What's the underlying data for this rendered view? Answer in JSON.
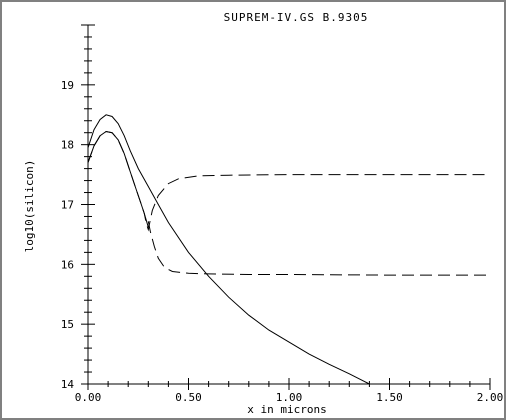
{
  "chart_data": {
    "type": "line",
    "title": "SUPREM-IV.GS B.9305",
    "xlabel": "x in microns",
    "ylabel": "log10(silicon)",
    "xlim": [
      0.0,
      2.0
    ],
    "ylim": [
      14,
      20
    ],
    "x_ticks": [
      "0.00",
      "0.50",
      "1.00",
      "1.50",
      "2.00"
    ],
    "y_ticks": [
      "14",
      "15",
      "16",
      "17",
      "18",
      "19"
    ],
    "grid": false,
    "series": [
      {
        "style": "solid",
        "x": [
          0.0,
          0.03,
          0.06,
          0.09,
          0.12,
          0.15,
          0.18,
          0.21,
          0.25,
          0.3,
          0.35,
          0.4,
          0.5,
          0.6,
          0.7,
          0.8,
          0.9,
          1.0,
          1.1,
          1.2,
          1.3,
          1.4
        ],
        "y": [
          17.95,
          18.25,
          18.42,
          18.5,
          18.47,
          18.35,
          18.15,
          17.9,
          17.6,
          17.3,
          17.0,
          16.7,
          16.2,
          15.8,
          15.45,
          15.15,
          14.9,
          14.7,
          14.5,
          14.33,
          14.17,
          14.0
        ]
      },
      {
        "style": "solid",
        "x": [
          0.0,
          0.03,
          0.06,
          0.09,
          0.12,
          0.15,
          0.18,
          0.21,
          0.24,
          0.26,
          0.28,
          0.3
        ],
        "y": [
          17.7,
          17.98,
          18.15,
          18.22,
          18.2,
          18.08,
          17.85,
          17.55,
          17.25,
          17.05,
          16.85,
          16.62
        ]
      },
      {
        "style": "dash",
        "x": [
          0.0,
          0.03,
          0.06,
          0.09,
          0.12,
          0.15,
          0.18,
          0.21,
          0.24,
          0.26,
          0.28,
          0.29,
          0.3,
          0.32,
          0.35,
          0.4,
          0.45,
          0.55,
          0.7,
          1.0,
          1.5,
          2.0
        ],
        "y": [
          17.7,
          17.98,
          18.15,
          18.22,
          18.2,
          18.08,
          17.85,
          17.55,
          17.25,
          17.05,
          16.85,
          16.68,
          16.58,
          16.9,
          17.15,
          17.35,
          17.43,
          17.48,
          17.49,
          17.5,
          17.5,
          17.5
        ]
      },
      {
        "style": "dash",
        "x": [
          0.3,
          0.31,
          0.33,
          0.35,
          0.38,
          0.42,
          0.5,
          0.6,
          0.8,
          1.0,
          1.5,
          2.0
        ],
        "y": [
          16.72,
          16.55,
          16.3,
          16.1,
          15.95,
          15.88,
          15.85,
          15.84,
          15.83,
          15.83,
          15.82,
          15.82
        ]
      }
    ]
  }
}
